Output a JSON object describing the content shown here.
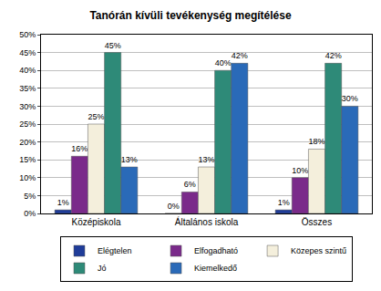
{
  "chart_data": {
    "type": "bar",
    "title": "Tanórán kívüli tevékenység megítélése",
    "categories": [
      "Középiskola",
      "Általános iskola",
      "Összes"
    ],
    "series": [
      {
        "name": "Elégtelen",
        "color": "#1f3c99",
        "values": [
          1,
          0,
          1
        ],
        "value_labels": [
          "1%",
          "0%",
          "1%"
        ]
      },
      {
        "name": "Elfogadható",
        "color": "#7a2a8a",
        "values": [
          16,
          6,
          10
        ],
        "value_labels": [
          "16%",
          "6%",
          "10%"
        ]
      },
      {
        "name": "Közepes szintű",
        "color": "#f4efdc",
        "values": [
          25,
          13,
          18
        ],
        "value_labels": [
          "25%",
          "13%",
          "18%"
        ]
      },
      {
        "name": "Jó",
        "color": "#2e8a78",
        "values": [
          45,
          40,
          42
        ],
        "value_labels": [
          "45%",
          "40%",
          "42%"
        ]
      },
      {
        "name": "Kiemelkedő",
        "color": "#2a6ab8",
        "values": [
          13,
          42,
          30
        ],
        "value_labels": [
          "13%",
          "42%",
          "30%"
        ]
      }
    ],
    "ylim": [
      0,
      50
    ],
    "yticks": [
      {
        "value": 0,
        "label": "0%"
      },
      {
        "value": 5,
        "label": "5%"
      },
      {
        "value": 10,
        "label": "10%"
      },
      {
        "value": 15,
        "label": "15%"
      },
      {
        "value": 20,
        "label": "20%"
      },
      {
        "value": 25,
        "label": "25%"
      },
      {
        "value": 30,
        "label": "30%"
      },
      {
        "value": 35,
        "label": "35%"
      },
      {
        "value": 40,
        "label": "40%"
      },
      {
        "value": 45,
        "label": "45%"
      },
      {
        "value": 50,
        "label": "50%"
      }
    ],
    "grid": true,
    "legend": "bottom",
    "data_labels": true
  }
}
